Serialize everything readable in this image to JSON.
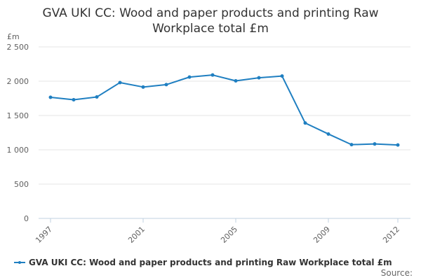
{
  "chart_data": {
    "type": "line",
    "title": "GVA UKI CC: Wood and paper products and printing Raw Workplace total £m",
    "title_lines": [
      "GVA UKI CC: Wood and paper products and printing Raw",
      "Workplace total £m"
    ],
    "y_unit_label": "£m",
    "xlabel": "",
    "ylabel": "",
    "x": [
      1997,
      1998,
      1999,
      2000,
      2001,
      2002,
      2003,
      2004,
      2005,
      2006,
      2007,
      2008,
      2009,
      2010,
      2011,
      2012
    ],
    "x_tick_labels": [
      "1997",
      "2001",
      "2005",
      "2009",
      "2012"
    ],
    "y_tick_labels": [
      "0",
      "500",
      "1 000",
      "1 500",
      "2 000",
      "2 500"
    ],
    "ylim": [
      0,
      2500
    ],
    "series": [
      {
        "name": "GVA UKI CC: Wood and paper products and printing Raw Workplace total £m",
        "color": "#1f7fc1",
        "values": [
          1765,
          1730,
          1770,
          1980,
          1915,
          1950,
          2060,
          2090,
          2005,
          2050,
          2075,
          1390,
          1230,
          1075,
          1085,
          1070
        ]
      }
    ],
    "grid": true,
    "legend_position": "bottom"
  },
  "legend": {
    "label": "GVA UKI CC: Wood and paper products and printing Raw Workplace total £m"
  },
  "credits": {
    "source_label": "Source:"
  }
}
